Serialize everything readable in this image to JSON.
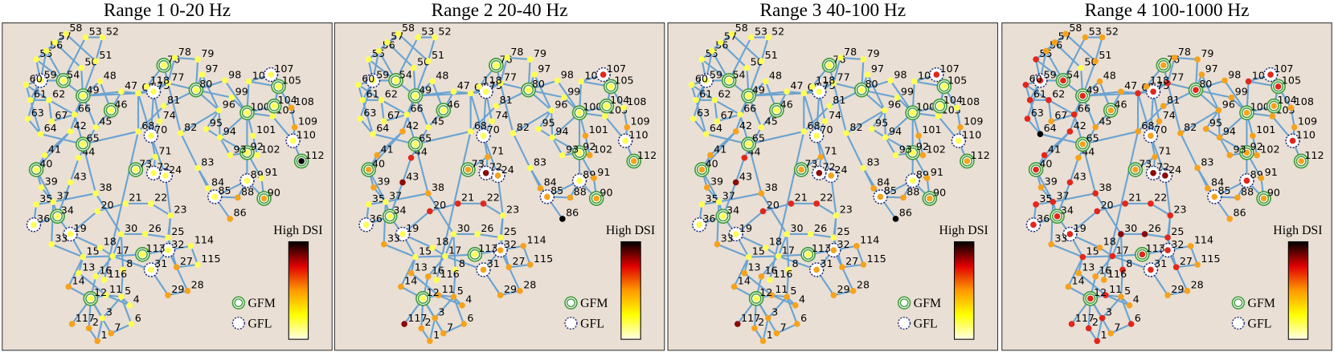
{
  "panels": [
    {
      "title": "Range 1 0-20 Hz",
      "dsi": [
        {
          "color": "#f7a21b",
          "nodes": [
            1,
            2,
            7,
            14,
            27,
            28,
            29,
            86,
            88,
            90,
            108,
            109,
            117
          ]
        },
        {
          "color": "#000000",
          "nodes": [
            112
          ]
        }
      ]
    },
    {
      "title": "Range 2 20-40 Hz",
      "dsi": [
        {
          "color": "#f7a21b",
          "nodes": [
            1,
            2,
            3,
            4,
            5,
            6,
            7,
            11,
            13,
            14,
            16,
            24,
            27,
            28,
            29,
            31,
            32,
            33,
            38,
            39,
            40,
            41,
            42,
            71,
            73,
            84,
            85,
            88,
            90,
            91,
            101,
            102,
            109,
            112,
            114,
            115
          ]
        },
        {
          "color": "#e3261b",
          "nodes": [
            20,
            21,
            22,
            44,
            107
          ]
        },
        {
          "color": "#8b0a0a",
          "nodes": [
            43,
            72,
            117
          ]
        },
        {
          "color": "#000000",
          "nodes": [
            86
          ]
        }
      ]
    },
    {
      "title": "Range 3 40-100 Hz",
      "dsi": [
        {
          "color": "#f7a21b",
          "nodes": [
            1,
            2,
            3,
            4,
            5,
            6,
            7,
            11,
            13,
            14,
            16,
            24,
            27,
            28,
            29,
            31,
            32,
            33,
            38,
            39,
            40,
            41,
            42,
            71,
            73,
            84,
            85,
            88,
            90,
            91,
            101,
            102,
            109,
            112,
            114,
            115
          ]
        },
        {
          "color": "#e3261b",
          "nodes": [
            20,
            21,
            22,
            44,
            107
          ]
        },
        {
          "color": "#8b0a0a",
          "nodes": [
            43,
            72,
            117
          ]
        },
        {
          "color": "#000000",
          "nodes": [
            86
          ]
        }
      ]
    },
    {
      "title": "Range 4 100-1000 Hz",
      "dsi": [
        {
          "color": "#f7a21b",
          "nodes": [
            4,
            5,
            7,
            13,
            14,
            16,
            18,
            28,
            29,
            33,
            39,
            44,
            45,
            46,
            47,
            48,
            51,
            52,
            53,
            56,
            57,
            58,
            65,
            67,
            68,
            70,
            71,
            73,
            74,
            76,
            78,
            79,
            81,
            82,
            83,
            84,
            85,
            86,
            88,
            90,
            91,
            92,
            93,
            94,
            95,
            96,
            97,
            98,
            99,
            100,
            101,
            102,
            103,
            104,
            108,
            109,
            112,
            114,
            115,
            116,
            118
          ]
        },
        {
          "color": "#e3261b",
          "nodes": [
            1,
            2,
            3,
            6,
            8,
            11,
            12,
            15,
            17,
            19,
            20,
            21,
            22,
            23,
            25,
            27,
            31,
            32,
            34,
            35,
            36,
            37,
            38,
            40,
            41,
            42,
            43,
            49,
            54,
            55,
            59,
            60,
            61,
            62,
            63,
            66,
            69,
            75,
            77,
            80,
            89,
            105,
            106,
            107,
            110,
            113,
            117
          ]
        },
        {
          "color": "#8b0a0a",
          "nodes": [
            24,
            26,
            30,
            72
          ]
        },
        {
          "color": "#000000",
          "nodes": [
            64
          ]
        }
      ]
    }
  ],
  "nodes": [
    1,
    2,
    3,
    4,
    5,
    6,
    7,
    8,
    11,
    12,
    13,
    14,
    15,
    16,
    17,
    18,
    19,
    20,
    21,
    22,
    23,
    24,
    25,
    26,
    27,
    28,
    29,
    30,
    31,
    32,
    33,
    34,
    35,
    36,
    37,
    38,
    39,
    40,
    41,
    42,
    43,
    44,
    45,
    46,
    47,
    48,
    49,
    50,
    51,
    52,
    53,
    54,
    55,
    56,
    57,
    58,
    59,
    60,
    61,
    62,
    63,
    64,
    65,
    66,
    67,
    68,
    69,
    70,
    71,
    72,
    73,
    74,
    75,
    76,
    77,
    78,
    79,
    80,
    81,
    82,
    83,
    84,
    85,
    86,
    88,
    89,
    90,
    91,
    92,
    93,
    94,
    95,
    96,
    97,
    98,
    99,
    100,
    101,
    102,
    103,
    104,
    105,
    106,
    107,
    108,
    109,
    110,
    112,
    113,
    114,
    115,
    116,
    117,
    118
  ],
  "base_color": "#ffff55",
  "gfm": [
    12,
    34,
    40,
    46,
    49,
    54,
    65,
    73,
    76,
    80,
    90,
    92,
    100,
    104,
    105,
    112,
    113
  ],
  "gfl": [
    19,
    24,
    31,
    32,
    36,
    59,
    70,
    72,
    75,
    85,
    89,
    107,
    110
  ],
  "colorbar_label": "High DSI",
  "colorbar_colors": [
    "#ffffe8",
    "#ffff00",
    "#ff9900",
    "#e00000",
    "#000000"
  ],
  "legend": [
    "GFM",
    "GFL"
  ]
}
